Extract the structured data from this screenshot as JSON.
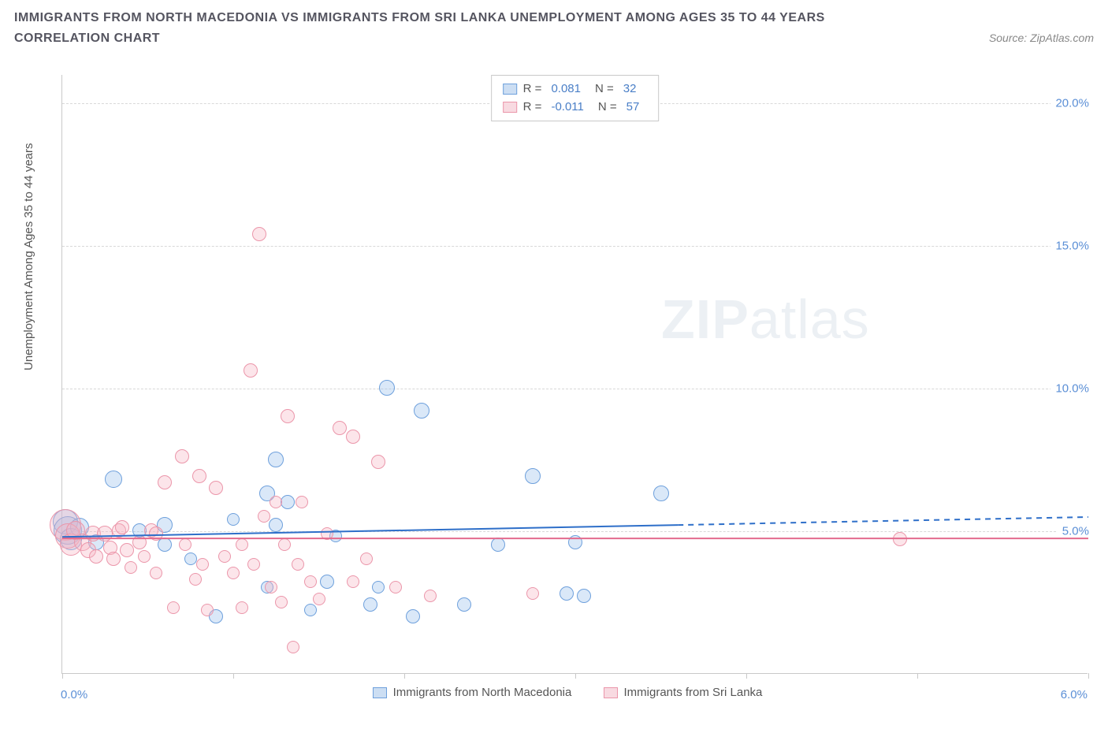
{
  "title_line1": "IMMIGRANTS FROM NORTH MACEDONIA VS IMMIGRANTS FROM SRI LANKA UNEMPLOYMENT AMONG AGES 35 TO 44 YEARS",
  "title_line2": "CORRELATION CHART",
  "source": "Source: ZipAtlas.com",
  "y_axis_label": "Unemployment Among Ages 35 to 44 years",
  "watermark_a": "ZIP",
  "watermark_b": "atlas",
  "chart": {
    "type": "scatter",
    "xlim": [
      0.0,
      6.0
    ],
    "ylim": [
      0.0,
      21.0
    ],
    "xtick_values": [
      0,
      1,
      2,
      3,
      4,
      5,
      6
    ],
    "xtick_labels": {
      "0": "0.0%",
      "6": "6.0%"
    },
    "ytick_values": [
      5,
      10,
      15,
      20
    ],
    "ytick_labels": {
      "5": "5.0%",
      "10": "10.0%",
      "15": "15.0%",
      "20": "20.0%"
    },
    "background_color": "#ffffff",
    "grid_color": "#d8d8d8",
    "axis_color": "#c9c9c9",
    "tick_label_color": "#5b8fd6",
    "series": [
      {
        "id": "blue",
        "name": "Immigrants from North Macedonia",
        "fill": "rgba(150,190,235,0.35)",
        "stroke": "#6ea0dc",
        "line_color": "#2e6fc9",
        "R": "0.081",
        "N": "32",
        "trend_y_at_x0": 4.8,
        "trend_y_at_x6": 5.5,
        "trend_solid_until_x": 3.6,
        "points": [
          {
            "x": 0.02,
            "y": 5.3,
            "r": 16
          },
          {
            "x": 0.03,
            "y": 5.0,
            "r": 18
          },
          {
            "x": 0.05,
            "y": 4.7,
            "r": 14
          },
          {
            "x": 0.3,
            "y": 6.8,
            "r": 11
          },
          {
            "x": 0.6,
            "y": 4.5,
            "r": 9
          },
          {
            "x": 0.6,
            "y": 5.2,
            "r": 10
          },
          {
            "x": 0.75,
            "y": 4.0,
            "r": 8
          },
          {
            "x": 0.9,
            "y": 2.0,
            "r": 9
          },
          {
            "x": 1.2,
            "y": 3.0,
            "r": 8
          },
          {
            "x": 1.2,
            "y": 6.3,
            "r": 10
          },
          {
            "x": 1.25,
            "y": 5.2,
            "r": 9
          },
          {
            "x": 1.25,
            "y": 7.5,
            "r": 10
          },
          {
            "x": 1.32,
            "y": 6.0,
            "r": 9
          },
          {
            "x": 1.45,
            "y": 2.2,
            "r": 8
          },
          {
            "x": 1.55,
            "y": 3.2,
            "r": 9
          },
          {
            "x": 1.6,
            "y": 4.8,
            "r": 8
          },
          {
            "x": 1.8,
            "y": 2.4,
            "r": 9
          },
          {
            "x": 1.85,
            "y": 3.0,
            "r": 8
          },
          {
            "x": 1.9,
            "y": 10.0,
            "r": 10
          },
          {
            "x": 2.05,
            "y": 2.0,
            "r": 9
          },
          {
            "x": 2.1,
            "y": 9.2,
            "r": 10
          },
          {
            "x": 2.35,
            "y": 2.4,
            "r": 9
          },
          {
            "x": 2.55,
            "y": 4.5,
            "r": 9
          },
          {
            "x": 2.75,
            "y": 6.9,
            "r": 10
          },
          {
            "x": 2.95,
            "y": 2.8,
            "r": 9
          },
          {
            "x": 3.0,
            "y": 4.6,
            "r": 9
          },
          {
            "x": 3.05,
            "y": 2.7,
            "r": 9
          },
          {
            "x": 3.5,
            "y": 6.3,
            "r": 10
          },
          {
            "x": 0.45,
            "y": 5.0,
            "r": 9
          },
          {
            "x": 0.2,
            "y": 4.6,
            "r": 10
          },
          {
            "x": 0.1,
            "y": 5.1,
            "r": 12
          },
          {
            "x": 1.0,
            "y": 5.4,
            "r": 8
          }
        ]
      },
      {
        "id": "pink",
        "name": "Immigrants from Sri Lanka",
        "fill": "rgba(245,180,195,0.35)",
        "stroke": "#eb96aa",
        "line_color": "#e36b8e",
        "R": "-0.011",
        "N": "57",
        "trend_y_at_x0": 4.75,
        "trend_y_at_x6": 4.75,
        "trend_solid_until_x": 6.0,
        "points": [
          {
            "x": 0.02,
            "y": 5.2,
            "r": 20
          },
          {
            "x": 0.03,
            "y": 4.8,
            "r": 16
          },
          {
            "x": 0.05,
            "y": 4.5,
            "r": 14
          },
          {
            "x": 0.08,
            "y": 5.0,
            "r": 12
          },
          {
            "x": 0.12,
            "y": 4.6,
            "r": 11
          },
          {
            "x": 0.15,
            "y": 4.3,
            "r": 10
          },
          {
            "x": 0.18,
            "y": 4.9,
            "r": 10
          },
          {
            "x": 0.2,
            "y": 4.1,
            "r": 9
          },
          {
            "x": 0.25,
            "y": 4.9,
            "r": 10
          },
          {
            "x": 0.28,
            "y": 4.4,
            "r": 9
          },
          {
            "x": 0.3,
            "y": 4.0,
            "r": 9
          },
          {
            "x": 0.33,
            "y": 5.0,
            "r": 9
          },
          {
            "x": 0.38,
            "y": 4.3,
            "r": 9
          },
          {
            "x": 0.4,
            "y": 3.7,
            "r": 8
          },
          {
            "x": 0.45,
            "y": 4.6,
            "r": 9
          },
          {
            "x": 0.48,
            "y": 4.1,
            "r": 8
          },
          {
            "x": 0.52,
            "y": 5.0,
            "r": 9
          },
          {
            "x": 0.55,
            "y": 3.5,
            "r": 8
          },
          {
            "x": 0.6,
            "y": 6.7,
            "r": 9
          },
          {
            "x": 0.65,
            "y": 2.3,
            "r": 8
          },
          {
            "x": 0.7,
            "y": 7.6,
            "r": 9
          },
          {
            "x": 0.72,
            "y": 4.5,
            "r": 8
          },
          {
            "x": 0.78,
            "y": 3.3,
            "r": 8
          },
          {
            "x": 0.8,
            "y": 6.9,
            "r": 9
          },
          {
            "x": 0.82,
            "y": 3.8,
            "r": 8
          },
          {
            "x": 0.85,
            "y": 2.2,
            "r": 8
          },
          {
            "x": 0.9,
            "y": 6.5,
            "r": 9
          },
          {
            "x": 0.95,
            "y": 4.1,
            "r": 8
          },
          {
            "x": 1.0,
            "y": 3.5,
            "r": 8
          },
          {
            "x": 1.05,
            "y": 4.5,
            "r": 8
          },
          {
            "x": 1.05,
            "y": 2.3,
            "r": 8
          },
          {
            "x": 1.1,
            "y": 10.6,
            "r": 9
          },
          {
            "x": 1.12,
            "y": 3.8,
            "r": 8
          },
          {
            "x": 1.15,
            "y": 15.4,
            "r": 9
          },
          {
            "x": 1.18,
            "y": 5.5,
            "r": 8
          },
          {
            "x": 1.22,
            "y": 3.0,
            "r": 8
          },
          {
            "x": 1.25,
            "y": 6.0,
            "r": 8
          },
          {
            "x": 1.28,
            "y": 2.5,
            "r": 8
          },
          {
            "x": 1.3,
            "y": 4.5,
            "r": 8
          },
          {
            "x": 1.32,
            "y": 9.0,
            "r": 9
          },
          {
            "x": 1.35,
            "y": 0.9,
            "r": 8
          },
          {
            "x": 1.38,
            "y": 3.8,
            "r": 8
          },
          {
            "x": 1.4,
            "y": 6.0,
            "r": 8
          },
          {
            "x": 1.45,
            "y": 3.2,
            "r": 8
          },
          {
            "x": 1.5,
            "y": 2.6,
            "r": 8
          },
          {
            "x": 1.55,
            "y": 4.9,
            "r": 8
          },
          {
            "x": 1.62,
            "y": 8.6,
            "r": 9
          },
          {
            "x": 1.7,
            "y": 3.2,
            "r": 8
          },
          {
            "x": 1.7,
            "y": 8.3,
            "r": 9
          },
          {
            "x": 1.78,
            "y": 4.0,
            "r": 8
          },
          {
            "x": 1.85,
            "y": 7.4,
            "r": 9
          },
          {
            "x": 1.95,
            "y": 3.0,
            "r": 8
          },
          {
            "x": 2.15,
            "y": 2.7,
            "r": 8
          },
          {
            "x": 2.75,
            "y": 2.8,
            "r": 8
          },
          {
            "x": 4.9,
            "y": 4.7,
            "r": 9
          },
          {
            "x": 0.55,
            "y": 4.9,
            "r": 9
          },
          {
            "x": 0.35,
            "y": 5.1,
            "r": 9
          }
        ]
      }
    ]
  },
  "legend_box": {
    "r_label": "R =",
    "n_label": "N ="
  },
  "bottom_legend": {
    "series1": "Immigrants from North Macedonia",
    "series2": "Immigrants from Sri Lanka"
  }
}
